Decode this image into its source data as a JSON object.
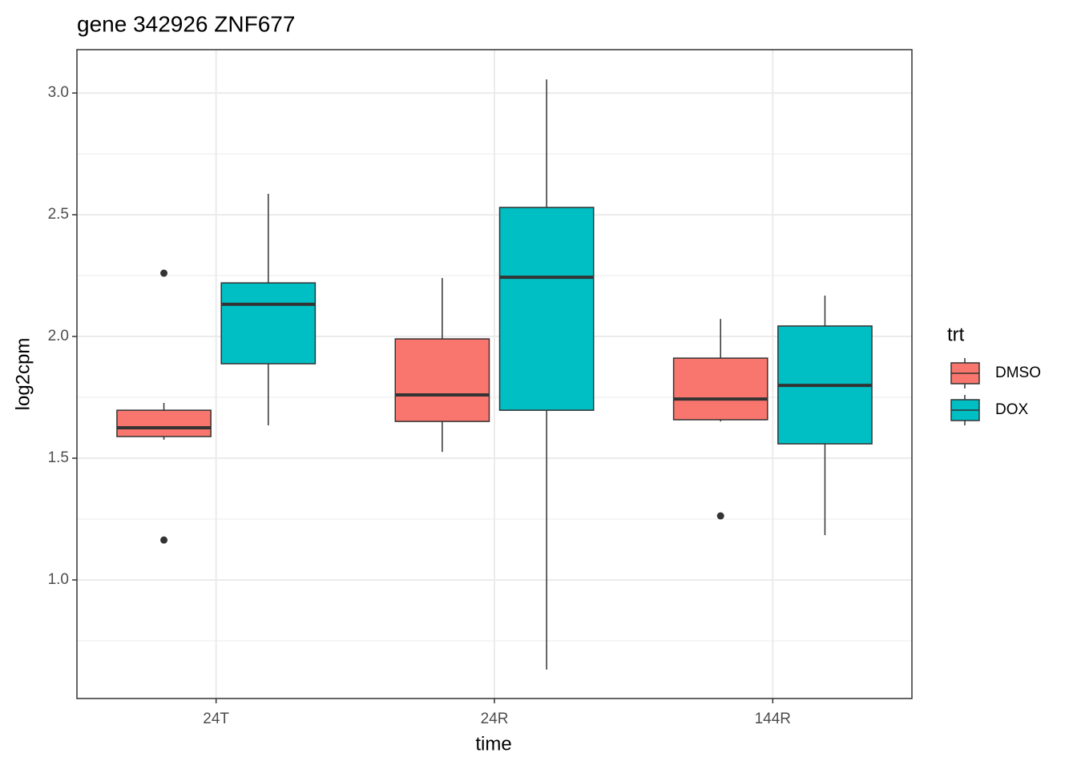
{
  "chart_data": {
    "type": "box",
    "title": "gene 342926 ZNF677",
    "x_label": "time",
    "y_label": "log2cpm",
    "categories": [
      "24T",
      "24R",
      "144R"
    ],
    "legend_title": "trt",
    "series": [
      {
        "name": "DMSO",
        "color": "#F8766D",
        "min": [
          1.576,
          1.526,
          1.651
        ],
        "q1": [
          1.589,
          1.651,
          1.658
        ],
        "median": [
          1.625,
          1.76,
          1.743
        ],
        "q3": [
          1.697,
          1.99,
          1.911
        ],
        "max": [
          1.727,
          2.24,
          2.072
        ],
        "outliers": [
          [
            2.26,
            1.164
          ],
          [],
          [
            1.263
          ]
        ]
      },
      {
        "name": "DOX",
        "color": "#00BFC4",
        "min": [
          1.635,
          0.632,
          1.184
        ],
        "q1": [
          1.888,
          1.697,
          1.559
        ],
        "median": [
          2.132,
          2.243,
          1.799
        ],
        "q3": [
          2.22,
          2.53,
          2.043
        ],
        "max": [
          2.586,
          3.056,
          2.168
        ],
        "outliers": [
          [],
          [],
          []
        ]
      }
    ],
    "ylim": [
      0.513,
      3.178
    ],
    "yticks": [
      {
        "value": 1,
        "label": "1.0"
      },
      {
        "value": 1.5,
        "label": "1.5"
      },
      {
        "value": 2,
        "label": "2.0"
      },
      {
        "value": 2.5,
        "label": "2.5"
      },
      {
        "value": 3,
        "label": "3.0"
      }
    ],
    "y_minor_ticks": [
      0.75,
      1.25,
      1.75,
      2.25,
      2.75
    ],
    "grid": true
  }
}
